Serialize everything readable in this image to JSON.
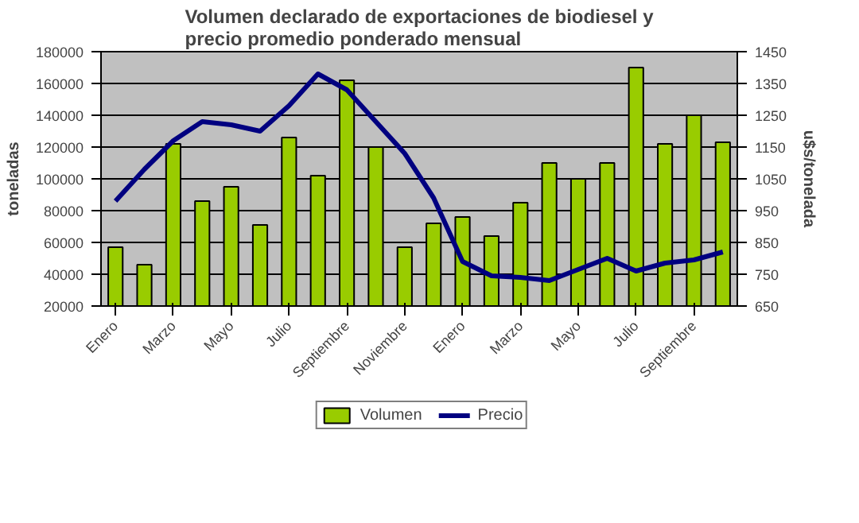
{
  "chart_data": {
    "type": "bar",
    "title": "Volumen declarado de exportaciones de biodiesel y precio promedio ponderado mensual",
    "ylabel": "toneladas",
    "y2label": "u$s/tonelada",
    "categories": [
      "Enero",
      null,
      "Marzo",
      null,
      "Mayo",
      null,
      "Julio",
      null,
      "Septiembre",
      null,
      "Noviembre",
      null,
      "Enero",
      null,
      "Marzo",
      null,
      "Mayo",
      null,
      "Julio",
      null,
      "Septiembre",
      null
    ],
    "series": [
      {
        "name": "Volumen",
        "color": "#99cc00",
        "values": [
          57000,
          46000,
          122000,
          86000,
          95000,
          71000,
          126000,
          102000,
          162000,
          120000,
          57000,
          72000,
          76000,
          64000,
          85000,
          110000,
          100000,
          110000,
          170000,
          122000,
          140000,
          123000
        ]
      },
      {
        "name": "Precio",
        "type": "line",
        "axis": "y2",
        "color": "#000080",
        "values": [
          980,
          1080,
          1170,
          1230,
          1220,
          1200,
          1280,
          1380,
          1330,
          1230,
          1130,
          990,
          790,
          745,
          740,
          730,
          765,
          800,
          760,
          785,
          795,
          820
        ]
      }
    ],
    "ylim": [
      20000,
      180000
    ],
    "yticks": [
      20000,
      40000,
      60000,
      80000,
      100000,
      120000,
      140000,
      160000,
      180000
    ],
    "y2lim": [
      650,
      1450
    ],
    "y2ticks": [
      650,
      750,
      850,
      950,
      1050,
      1150,
      1250,
      1350,
      1450
    ],
    "grid": "y",
    "legend": "bottom"
  }
}
